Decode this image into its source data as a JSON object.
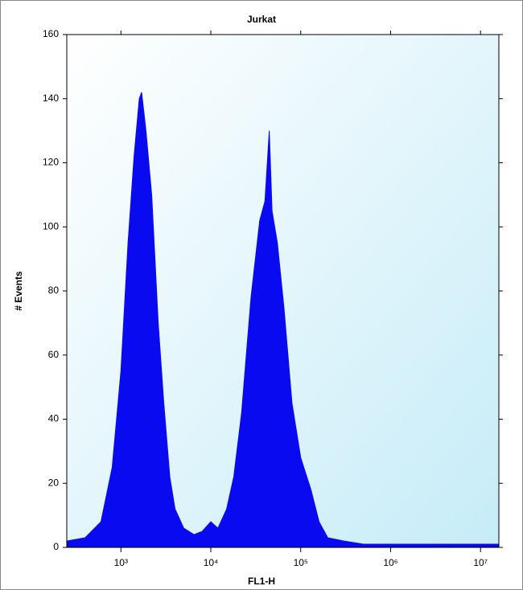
{
  "chart_data": {
    "type": "area",
    "title": "Jurkat",
    "x_label": "FL1-H",
    "y_label": "# Events",
    "log_x": true,
    "color": "#0a0af0",
    "x": [
      250,
      400,
      600,
      800,
      1000,
      1200,
      1400,
      1600,
      1700,
      1900,
      2200,
      2600,
      3000,
      3500,
      4000,
      5000,
      6500,
      8000,
      10000,
      12000,
      15000,
      18000,
      22000,
      28000,
      35000,
      40000,
      44700,
      48000,
      55000,
      65000,
      80000,
      100000,
      130000,
      160000,
      200000,
      300000,
      500000,
      1000000,
      3000000,
      10000000,
      16000000
    ],
    "values": [
      2,
      3,
      8,
      25,
      55,
      95,
      122,
      140,
      142,
      130,
      110,
      70,
      45,
      22,
      12,
      6,
      4,
      5,
      8,
      6,
      12,
      22,
      42,
      78,
      102,
      108,
      130,
      105,
      95,
      75,
      45,
      28,
      18,
      8,
      3,
      2,
      1,
      1,
      1,
      1,
      1
    ],
    "xlim": [
      250,
      16000000
    ],
    "ylim": [
      0,
      160
    ],
    "xticks": [
      {
        "value": 1000,
        "label": "10³"
      },
      {
        "value": 10000,
        "label": "10⁴"
      },
      {
        "value": 100000,
        "label": "10⁵"
      },
      {
        "value": 1000000,
        "label": "10⁶"
      },
      {
        "value": 10000000,
        "label": "10⁷"
      }
    ],
    "yticks": [
      0,
      20,
      40,
      60,
      80,
      100,
      120,
      140,
      160
    ]
  }
}
